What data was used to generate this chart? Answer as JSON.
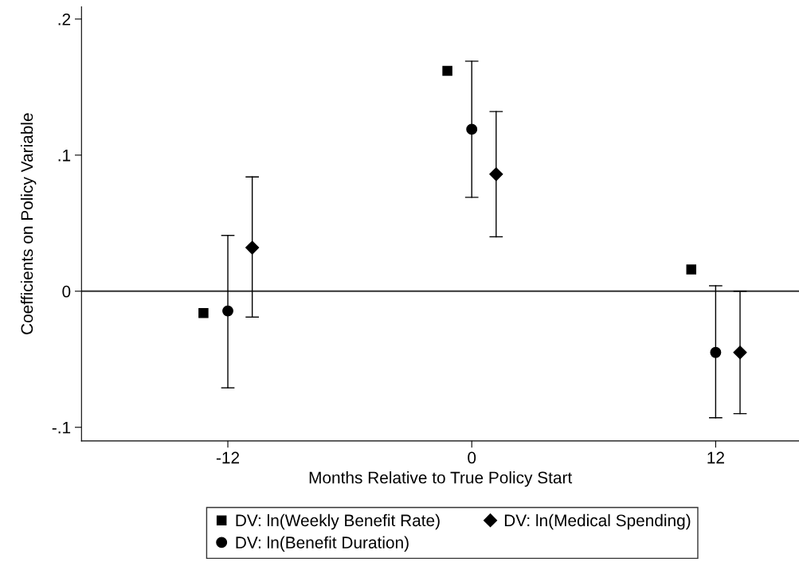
{
  "chart_data": {
    "type": "scatter",
    "xlabel": "Months Relative to True Policy Start",
    "ylabel": "Coefficients on Policy Variable",
    "xlim": [
      -19.2,
      16.1
    ],
    "ylim": [
      -0.11,
      0.209
    ],
    "xticks": [
      -12,
      0,
      12
    ],
    "yticks": [
      {
        "value": -0.1,
        "label": "-.1"
      },
      0,
      {
        "value": 0.1,
        "label": ".1"
      },
      {
        "value": 0.2,
        "label": ".2"
      }
    ],
    "series": [
      {
        "name": "DV: ln(Weekly Benefit Rate)",
        "color": "#000000",
        "marker": "square",
        "x": [
          -13.2,
          -1.2,
          10.8
        ],
        "values": [
          -0.016,
          0.162,
          0.016
        ]
      },
      {
        "name": "DV: ln(Benefit Duration)",
        "color": "#000000",
        "marker": "circle",
        "x": [
          -12,
          0,
          12
        ],
        "values": [
          -0.0145,
          0.119,
          -0.045
        ],
        "errors": [
          [
            -0.071,
            0.041
          ],
          [
            0.069,
            0.169
          ],
          [
            -0.093,
            0.004
          ]
        ]
      },
      {
        "name": "DV: ln(Medical Spending)",
        "color": "#000000",
        "marker": "diamond",
        "x": [
          -10.8,
          1.2,
          13.2
        ],
        "values": [
          0.032,
          0.086,
          -0.045
        ],
        "errors": [
          [
            -0.019,
            0.084
          ],
          [
            0.04,
            0.132
          ],
          [
            -0.09,
            0.0
          ]
        ]
      }
    ],
    "ref_lines": [
      {
        "axis": "y",
        "value": 0,
        "color": "#333333",
        "line_style": "solid"
      }
    ],
    "grid": false,
    "legend": "bottom"
  }
}
